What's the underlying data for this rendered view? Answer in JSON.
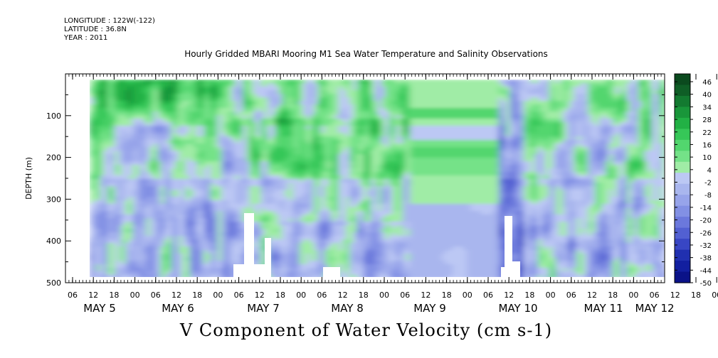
{
  "header": {
    "longitude": "LONGITUDE : 122W(-122)",
    "latitude": "LATITUDE : 36.8N",
    "year": "YEAR : 2011"
  },
  "chart_data": {
    "type": "heatmap",
    "title": "Hourly Gridded MBARI Mooring M1 Sea Water Temperature and Salinity Observations",
    "xlabel": "V Component of Water Velocity (cm s-1)",
    "ylabel": "DEPTH (m)",
    "ylim": [
      500,
      0
    ],
    "y_ticks": [
      100,
      200,
      300,
      400,
      500
    ],
    "x_hour_ticks": [
      "06",
      "12",
      "18",
      "00",
      "06",
      "12",
      "18",
      "00",
      "06",
      "12",
      "18",
      "00",
      "06",
      "12",
      "18",
      "00",
      "06",
      "12",
      "18",
      "00",
      "06",
      "12",
      "18",
      "00",
      "06",
      "12",
      "18",
      "00",
      "06",
      "12",
      "18",
      "00"
    ],
    "x_day_labels": [
      "MAY  5",
      "MAY  6",
      "MAY  7",
      "MAY  8",
      "MAY  9",
      "MAY 10",
      "MAY 11",
      "MAY 12"
    ],
    "colorbar": {
      "labels": [
        "46",
        "40",
        "34",
        "28",
        "22",
        "16",
        "10",
        "4",
        "-2",
        "-8",
        "-14",
        "-20",
        "-26",
        "-32",
        "-38",
        "-44",
        "-50"
      ],
      "colors": [
        "#0b4a1e",
        "#0f5e26",
        "#137a30",
        "#19963a",
        "#22b145",
        "#36c758",
        "#52d66e",
        "#74e288",
        "#a0eca6",
        "#bcc8f4",
        "#a9b6ee",
        "#97a4ea",
        "#8290e4",
        "#6b78dc",
        "#5260d2",
        "#3846c4",
        "#2030b0",
        "#121fa0",
        "#0a1288"
      ],
      "range": [
        -50,
        46
      ]
    },
    "field_summary": {
      "depth_range_m": [
        20,
        485
      ],
      "description_palette": [
        "green (positive)",
        "blue (negative)"
      ]
    }
  }
}
